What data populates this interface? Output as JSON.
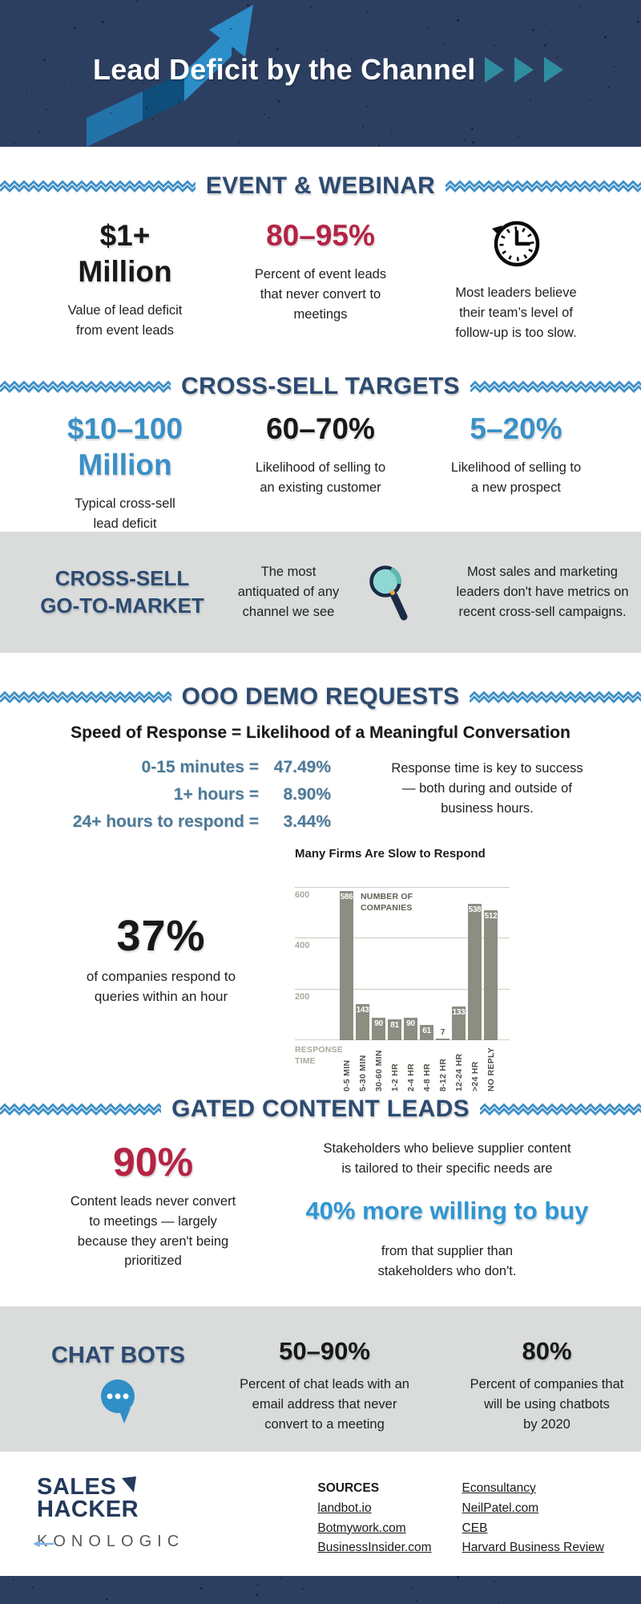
{
  "palette": {
    "header_bg": "#2d3f61",
    "section_heading_navy": "#2d4b72",
    "divider_blue": "#3e8fc7",
    "accent_red": "#b52344",
    "accent_blue": "#3a90c8",
    "steel_blue": "#4b7a99",
    "highlight_blue": "#2e96d3",
    "band_gray": "#d9dcdb",
    "chart_bar_gray": "#8d8d82",
    "teal_triangle": "#2f8da0",
    "logo_navy": "#24395c"
  },
  "header": {
    "title": "Lead Deficit by the Channel"
  },
  "event": {
    "heading": "EVENT & WEBINAR",
    "stat1_value": "$1+\nMillion",
    "stat1_desc": "Value of lead deficit\nfrom event leads",
    "stat2_value": "80–95%",
    "stat2_desc": "Percent of event leads\nthat never convert to\nmeetings",
    "stat3_icon": "clock-icon",
    "stat3_desc": "Most leaders believe\ntheir team’s level of\nfollow-up is too slow."
  },
  "crosssell": {
    "heading": "CROSS-SELL TARGETS",
    "stat1_value": "$10–100\nMillion",
    "stat1_desc": "Typical cross-sell\nlead deficit",
    "stat2_value": "60–70%",
    "stat2_desc": "Likelihood of selling to\nan existing customer",
    "stat3_value": "5–20%",
    "stat3_desc": "Likelihood of selling to\na new prospect"
  },
  "band1": {
    "title": "CROSS-SELL\nGO-TO-MARKET",
    "left_text": "The most\nantiquated of any\nchannel we see",
    "icon": "magnifier-icon",
    "right_text": "Most sales and marketing\nleaders don't have metrics on\nrecent cross-sell campaigns."
  },
  "ooo": {
    "heading": "OOO DEMO REQUESTS",
    "subtitle": "Speed of Response = Likelihood of a Meaningful Conversation",
    "stats": [
      {
        "label": "0-15 minutes =",
        "value": "47.49%"
      },
      {
        "label": "1+ hours =",
        "value": "8.90%"
      },
      {
        "label": "24+ hours to respond =",
        "value": "3.44%"
      }
    ],
    "side_text": "Response time is key to success\n— both during and outside of\nbusiness hours.",
    "big_stat": "37%",
    "big_stat_desc": "of companies respond to\nqueries within an hour"
  },
  "chart_data": {
    "type": "bar",
    "title": "Many Firms Are Slow to Respond",
    "categories": [
      "0-5 MIN",
      "5-30 MIN",
      "30-60 MIN",
      "1-2 HR",
      "2-4 HR",
      "4-8 HR",
      "8-12 HR",
      "12-24 HR",
      ">24 HR",
      "NO REPLY"
    ],
    "values": [
      586,
      143,
      90,
      81,
      90,
      61,
      7,
      133,
      538,
      512
    ],
    "ylabel": "NUMBER OF COMPANIES",
    "xlabel": "RESPONSE TIME",
    "yticks": [
      200,
      400,
      600
    ],
    "ylim": [
      0,
      600
    ],
    "grid": true,
    "legend": false,
    "bar_color": "#8d8d82"
  },
  "gated": {
    "heading": "GATED CONTENT LEADS",
    "stat_value": "90%",
    "stat_desc": "Content leads never convert\nto meetings — largely\nbecause they aren't being\nprioritized",
    "line1": "Stakeholders who believe supplier content\nis tailored to their specific needs are",
    "highlight": "40% more willing to buy",
    "line2": "from that supplier than\nstakeholders who don't."
  },
  "chatbots": {
    "title": "CHAT BOTS",
    "icon": "chat-bubble-icon",
    "stat1_value": "50–90%",
    "stat1_desc": "Percent of chat leads with an\nemail address that never\nconvert to a meeting",
    "stat2_value": "80%",
    "stat2_desc": "Percent of companies that\nwill be using chatbots\nby 2020"
  },
  "footer": {
    "logo1_line1": "SALES",
    "logo1_line2": "HACKER",
    "logo2_text": "KRONOLOGIC",
    "sources_heading": "SOURCES",
    "sources_col1": [
      "landbot.io",
      "Botmywork.com",
      "BusinessInsider.com"
    ],
    "sources_col2": [
      "Econsultancy",
      "NeilPatel.com",
      "CEB",
      "Harvard Business Review"
    ]
  }
}
